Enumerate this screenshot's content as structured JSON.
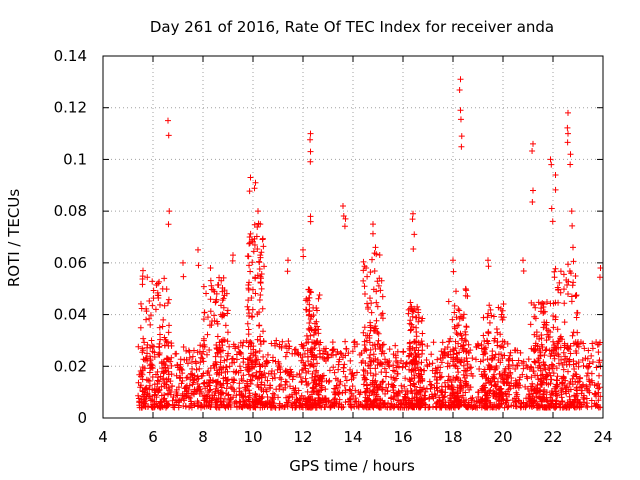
{
  "chart_data": {
    "type": "scatter",
    "title": "Day 261 of 2016, Rate Of TEC Index for receiver anda",
    "xlabel": "GPS time / hours",
    "ylabel": "ROTI / TECUs",
    "xlim": [
      4,
      24
    ],
    "ylim": [
      0,
      0.14
    ],
    "xticks": [
      4,
      6,
      8,
      10,
      12,
      14,
      16,
      18,
      20,
      22,
      24
    ],
    "xtick_labels": [
      "4",
      "6",
      "8",
      "10",
      "12",
      "14",
      "16",
      "18",
      "20",
      "22",
      "24"
    ],
    "yticks": [
      0,
      0.02,
      0.04,
      0.06,
      0.08,
      0.1,
      0.12,
      0.14
    ],
    "ytick_labels": [
      "0",
      "0.02",
      "0.04",
      "0.06",
      "0.08",
      "0.1",
      "0.12",
      "0.14"
    ],
    "grid": true,
    "marker": "+",
    "color": "#ff0000",
    "data_range_hours": [
      5.4,
      23.9
    ],
    "baseline_band": [
      0.004,
      0.03
    ],
    "peaks": [
      {
        "x": 5.6,
        "y": 0.057
      },
      {
        "x": 6.2,
        "y": 0.052
      },
      {
        "x": 6.6,
        "y": 0.115
      },
      {
        "x": 6.65,
        "y": 0.08
      },
      {
        "x": 7.2,
        "y": 0.06
      },
      {
        "x": 7.8,
        "y": 0.065
      },
      {
        "x": 8.3,
        "y": 0.058
      },
      {
        "x": 9.2,
        "y": 0.063
      },
      {
        "x": 9.9,
        "y": 0.093
      },
      {
        "x": 10.1,
        "y": 0.091
      },
      {
        "x": 10.2,
        "y": 0.08
      },
      {
        "x": 10.3,
        "y": 0.062
      },
      {
        "x": 11.4,
        "y": 0.061
      },
      {
        "x": 12.0,
        "y": 0.065
      },
      {
        "x": 12.3,
        "y": 0.11
      },
      {
        "x": 12.3,
        "y": 0.103
      },
      {
        "x": 12.3,
        "y": 0.078
      },
      {
        "x": 13.6,
        "y": 0.082
      },
      {
        "x": 13.7,
        "y": 0.077
      },
      {
        "x": 14.8,
        "y": 0.075
      },
      {
        "x": 14.9,
        "y": 0.066
      },
      {
        "x": 16.4,
        "y": 0.079
      },
      {
        "x": 16.45,
        "y": 0.071
      },
      {
        "x": 18.0,
        "y": 0.061
      },
      {
        "x": 18.3,
        "y": 0.131
      },
      {
        "x": 18.3,
        "y": 0.119
      },
      {
        "x": 18.35,
        "y": 0.109
      },
      {
        "x": 19.4,
        "y": 0.061
      },
      {
        "x": 20.8,
        "y": 0.061
      },
      {
        "x": 21.2,
        "y": 0.106
      },
      {
        "x": 21.2,
        "y": 0.088
      },
      {
        "x": 21.9,
        "y": 0.1
      },
      {
        "x": 21.95,
        "y": 0.081
      },
      {
        "x": 22.1,
        "y": 0.094
      },
      {
        "x": 22.6,
        "y": 0.118
      },
      {
        "x": 22.6,
        "y": 0.11
      },
      {
        "x": 22.7,
        "y": 0.102
      },
      {
        "x": 22.75,
        "y": 0.08
      },
      {
        "x": 22.8,
        "y": 0.066
      },
      {
        "x": 23.9,
        "y": 0.058
      }
    ],
    "bursts": [
      {
        "center": 6.1,
        "width": 1.2,
        "max": 0.055
      },
      {
        "center": 8.5,
        "width": 1.0,
        "max": 0.055
      },
      {
        "center": 10.1,
        "width": 0.7,
        "max": 0.075
      },
      {
        "center": 12.4,
        "width": 0.6,
        "max": 0.05
      },
      {
        "center": 14.8,
        "width": 0.8,
        "max": 0.065
      },
      {
        "center": 16.5,
        "width": 0.6,
        "max": 0.045
      },
      {
        "center": 18.2,
        "width": 0.8,
        "max": 0.05
      },
      {
        "center": 19.6,
        "width": 0.9,
        "max": 0.045
      },
      {
        "center": 21.5,
        "width": 0.8,
        "max": 0.045
      },
      {
        "center": 22.5,
        "width": 1.0,
        "max": 0.06
      }
    ]
  }
}
